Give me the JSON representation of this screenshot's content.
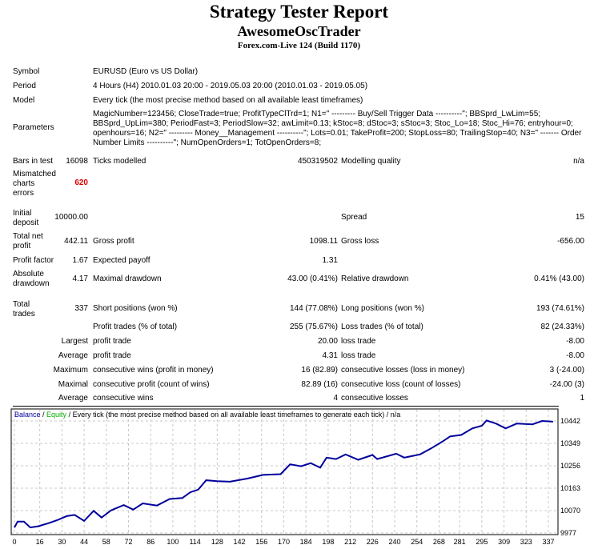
{
  "header": {
    "title": "Strategy Tester Report",
    "expert": "AwesomeOscTrader",
    "server": "Forex.com-Live 124 (Build 1170)"
  },
  "info": {
    "symbol_label": "Symbol",
    "symbol": "EURUSD (Euro vs US Dollar)",
    "period_label": "Period",
    "period": "4 Hours (H4) 2010.01.03 20:00 - 2019.05.03 20:00 (2010.01.03 - 2019.05.05)",
    "model_label": "Model",
    "model": "Every tick (the most precise method based on all available least timeframes)",
    "parameters_label": "Parameters",
    "parameters": "MagicNumber=123456; CloseTrade=true; ProfitTypeClTrd=1; N1=\" --------- Buy/Sell Trigger Data ----------\"; BBSprd_LwLim=55; BBSprd_UpLim=380; PeriodFast=3; PeriodSlow=32; awLimit=0.13; kStoc=8; dStoc=3; sStoc=3; Stoc_Lo=18; Stoc_Hi=76; entryhour=0; openhours=16; N2=\" --------- Money__Management ----------\"; Lots=0.01; TakeProfit=200; StopLoss=80; TrailingStop=40; N3=\" ------- Order Number Limits ----------\"; NumOpenOrders=1; TotOpenOrders=8;"
  },
  "stats": {
    "bars_label": "Bars in test",
    "bars": "16098",
    "ticks_label": "Ticks modelled",
    "ticks": "450319502",
    "quality_label": "Modelling quality",
    "quality": "n/a",
    "mismatch_label": "Mismatched charts errors",
    "mismatch": "620",
    "deposit_label": "Initial deposit",
    "deposit": "10000.00",
    "spread_label": "Spread",
    "spread": "15",
    "net_label": "Total net profit",
    "net": "442.11",
    "gross_profit_label": "Gross profit",
    "gross_profit": "1098.11",
    "gross_loss_label": "Gross loss",
    "gross_loss": "-656.00",
    "pf_label": "Profit factor",
    "pf": "1.67",
    "payoff_label": "Expected payoff",
    "payoff": "1.31",
    "abs_dd_label": "Absolute drawdown",
    "abs_dd": "4.17",
    "max_dd_label": "Maximal drawdown",
    "max_dd": "43.00 (0.41%)",
    "rel_dd_label": "Relative drawdown",
    "rel_dd": "0.41% (43.00)",
    "trades_label": "Total trades",
    "trades": "337",
    "short_label": "Short positions (won %)",
    "short": "144 (77.08%)",
    "long_label": "Long positions (won %)",
    "long": "193 (74.61%)",
    "profit_trades_label": "Profit trades (% of total)",
    "profit_trades": "255 (75.67%)",
    "loss_trades_label": "Loss trades (% of total)",
    "loss_trades": "82 (24.33%)",
    "largest": "Largest",
    "largest_profit_label": "profit trade",
    "largest_profit": "20.00",
    "largest_loss_label": "loss trade",
    "largest_loss": "-8.00",
    "average": "Average",
    "avg_profit_label": "profit trade",
    "avg_profit": "4.31",
    "avg_loss_label": "loss trade",
    "avg_loss": "-8.00",
    "maximum": "Maximum",
    "max_wins_label": "consecutive wins (profit in money)",
    "max_wins": "16 (82.89)",
    "max_losses_label": "consecutive losses (loss in money)",
    "max_losses": "3 (-24.00)",
    "maximal": "Maximal",
    "maximal_profit_label": "consecutive profit (count of wins)",
    "maximal_profit": "82.89 (16)",
    "maximal_loss_label": "consecutive loss (count of losses)",
    "maximal_loss": "-24.00 (3)",
    "average2": "Average",
    "avg_wins_label": "consecutive wins",
    "avg_wins": "4",
    "avg_losses_label": "consecutive losses",
    "avg_losses": "1"
  },
  "chart_data": {
    "type": "line",
    "legend": {
      "balance": "Balance",
      "sep1": " / ",
      "equity": "Equity",
      "rest": " / Every tick (the most precise method based on all available least timeframes to generate each tick) / n/a"
    },
    "colors": {
      "balance": "#00009c",
      "equity": "#00b000",
      "grid": "#c8c8c8"
    },
    "xlim": [
      0,
      340
    ],
    "ylim": [
      9977,
      10460
    ],
    "x_ticks": [
      0,
      16,
      30,
      44,
      58,
      72,
      86,
      100,
      114,
      128,
      142,
      156,
      170,
      184,
      198,
      212,
      226,
      240,
      254,
      268,
      281,
      295,
      309,
      323,
      337
    ],
    "y_ticks": [
      9977,
      10070,
      10163,
      10256,
      10349,
      10442
    ],
    "grid": true,
    "series": [
      {
        "x": [
          0,
          2,
          6,
          10,
          15,
          22,
          27,
          33,
          38,
          44,
          50,
          55,
          61,
          69,
          75,
          81,
          90,
          98,
          106,
          111,
          116,
          121,
          128,
          136,
          147,
          157,
          168,
          174,
          181,
          187,
          193,
          197,
          203,
          209,
          217,
          226,
          229,
          241,
          246,
          256,
          263,
          270,
          275,
          282,
          289,
          295,
          298,
          304,
          310,
          317,
          327,
          333,
          340
        ],
        "y": [
          10000,
          10024,
          10024,
          10000,
          10005,
          10019,
          10030,
          10047,
          10052,
          10027,
          10069,
          10041,
          10071,
          10093,
          10074,
          10100,
          10091,
          10118,
          10122,
          10146,
          10157,
          10196,
          10192,
          10190,
          10203,
          10218,
          10221,
          10262,
          10254,
          10267,
          10248,
          10290,
          10284,
          10303,
          10281,
          10301,
          10284,
          10306,
          10290,
          10303,
          10328,
          10356,
          10378,
          10384,
          10411,
          10422,
          10444,
          10431,
          10411,
          10431,
          10428,
          10442,
          10439
        ]
      }
    ]
  }
}
